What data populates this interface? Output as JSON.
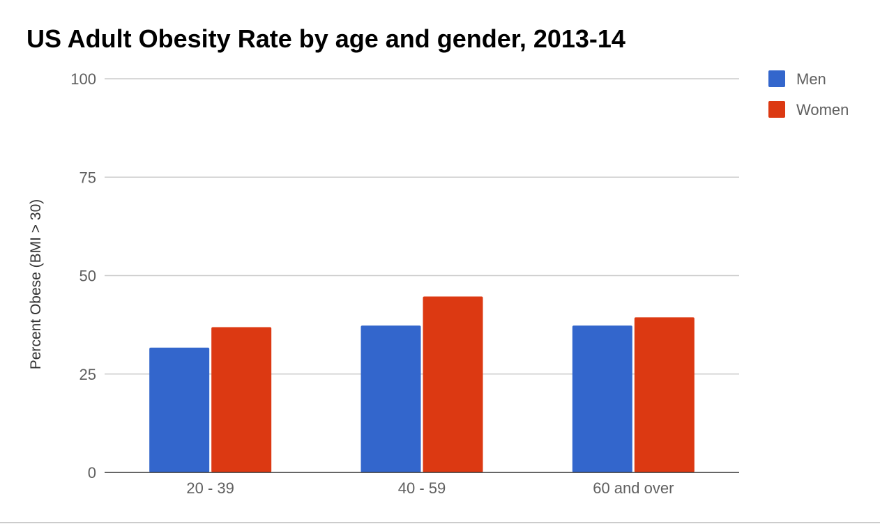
{
  "chart_data": {
    "type": "bar",
    "title": "US Adult Obesity Rate by age and gender, 2013-14",
    "xlabel": "",
    "ylabel": "Percent Obese (BMI > 30)",
    "ylim": [
      0,
      100
    ],
    "yticks": [
      0,
      25,
      50,
      75,
      100
    ],
    "categories": [
      "20 - 39",
      "40 - 59",
      "60 and over"
    ],
    "series": [
      {
        "name": "Men",
        "color": "#3366cc",
        "values": [
          31.7,
          37.3,
          37.3
        ]
      },
      {
        "name": "Women",
        "color": "#dc3912",
        "values": [
          36.9,
          44.7,
          39.4
        ]
      }
    ],
    "grid": true,
    "legend_position": "top-right"
  }
}
